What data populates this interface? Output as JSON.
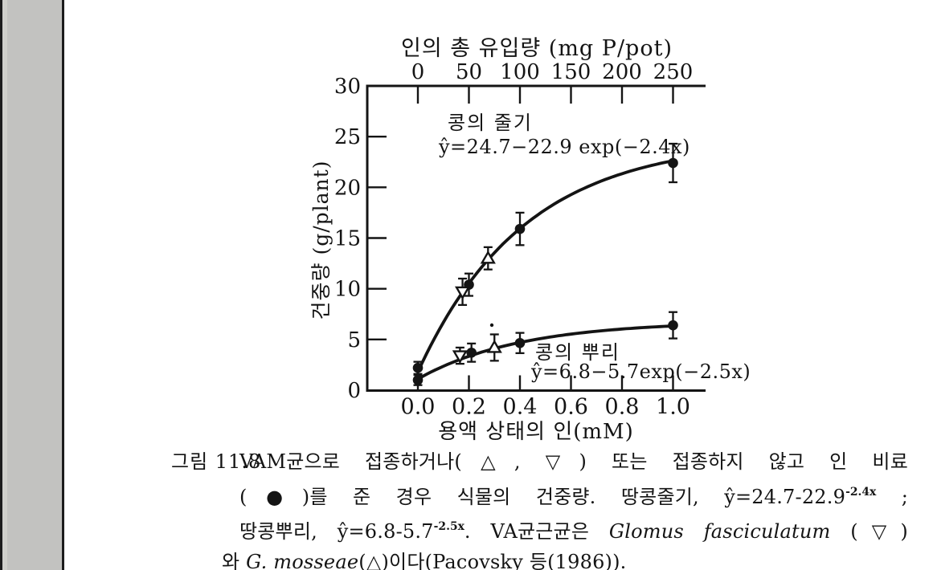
{
  "page": {
    "background": "#ffffff",
    "margin_strip_color": "#c2c2c0",
    "ink_color": "#141414"
  },
  "chart_data": {
    "type": "scatter",
    "top_axis": {
      "title": "인의 총 유입량 (mg P/pot)",
      "tick_labels": [
        "0",
        "50",
        "100",
        "150",
        "200",
        "250"
      ],
      "tick_values": [
        0,
        50,
        100,
        150,
        200,
        250
      ],
      "max": 250
    },
    "x_axis": {
      "title": "용액 상태의 인(mM)",
      "tick_labels": [
        "0.0",
        "0.2",
        "0.4",
        "0.6",
        "0.8",
        "1.0"
      ],
      "tick_values": [
        0.0,
        0.2,
        0.4,
        0.6,
        0.8,
        1.0
      ]
    },
    "y_axis": {
      "title": "건중량 (g/plant)",
      "tick_labels": [
        "0",
        "5",
        "10",
        "15",
        "20",
        "25",
        "30"
      ],
      "tick_values": [
        0,
        5,
        10,
        15,
        20,
        25,
        30
      ],
      "ylim": [
        0,
        30
      ]
    },
    "grid": false,
    "curves": [
      {
        "name": "stem",
        "label": "콩의 줄기",
        "equation": "ŷ=24.7−22.9 exp(−2.4x)",
        "a": 24.7,
        "b": 22.9,
        "c": 2.4,
        "domain": [
          0.0,
          1.0
        ]
      },
      {
        "name": "root",
        "label": "콩의 뿌리",
        "equation": "ŷ=6.8−5.7exp(−2.5x)",
        "a": 6.8,
        "b": 5.7,
        "c": 2.5,
        "domain": [
          0.0,
          1.0
        ]
      }
    ],
    "series": [
      {
        "name": "stem-phosphorus-fertilized",
        "symbol": "●",
        "marker": "circle-filled",
        "points": [
          {
            "x": 0.0,
            "y": 2.2,
            "err": 0.6
          },
          {
            "x": 0.2,
            "y": 10.4,
            "err": 1.1
          },
          {
            "x": 0.4,
            "y": 15.9,
            "err": 1.6
          },
          {
            "x": 1.0,
            "y": 22.4,
            "err": 1.9
          }
        ]
      },
      {
        "name": "stem-glomus-fasciculatum",
        "symbol": "▽",
        "marker": "triangle-down-open",
        "points": [
          {
            "x": 0.175,
            "y": 9.7,
            "err": 1.3
          }
        ]
      },
      {
        "name": "stem-glomus-mosseae",
        "symbol": "△",
        "marker": "triangle-up-open",
        "points": [
          {
            "x": 0.275,
            "y": 13.0,
            "err": 1.1
          }
        ]
      },
      {
        "name": "root-phosphorus-fertilized",
        "symbol": "●",
        "marker": "circle-filled",
        "points": [
          {
            "x": 0.0,
            "y": 1.0,
            "err": 0.5
          },
          {
            "x": 0.21,
            "y": 3.7,
            "err": 0.9
          },
          {
            "x": 0.4,
            "y": 4.65,
            "err": 1.0
          },
          {
            "x": 1.0,
            "y": 6.4,
            "err": 1.3
          }
        ]
      },
      {
        "name": "root-glomus-fasciculatum",
        "symbol": "▽",
        "marker": "triangle-down-open",
        "points": [
          {
            "x": 0.165,
            "y": 3.4,
            "err": 0.8
          }
        ]
      },
      {
        "name": "root-glomus-mosseae",
        "symbol": "△",
        "marker": "triangle-up-open",
        "points": [
          {
            "x": 0.3,
            "y": 4.2,
            "err": 1.3
          }
        ]
      }
    ]
  },
  "caption": {
    "figure_label": "그림 11.8",
    "lines": [
      {
        "segments": [
          {
            "t": "VAM균으로 접종하거나(△, ▽) 또는 접종하지 않고 인 비료"
          }
        ]
      },
      {
        "segments": [
          {
            "t": "(●)를 준 경우 식물의 건중량. 땅콩줄기, ŷ=24.7-22.9"
          },
          {
            "t": "-2.4x",
            "sup": true
          },
          {
            "t": " ;"
          }
        ]
      },
      {
        "segments": [
          {
            "t": "땅콩뿌리, ŷ=6.8-5.7"
          },
          {
            "t": "-2.5x",
            "sup": true
          },
          {
            "t": ". VA균근균은 "
          },
          {
            "t": "Glomus fasciculatum",
            "it": true
          },
          {
            "t": " (▽)"
          }
        ]
      },
      {
        "segments": [
          {
            "t": "와 "
          },
          {
            "t": "G. mosseae",
            "it": true
          },
          {
            "t": "(△)이다(Pacovsky 등(1986))."
          }
        ]
      }
    ]
  }
}
